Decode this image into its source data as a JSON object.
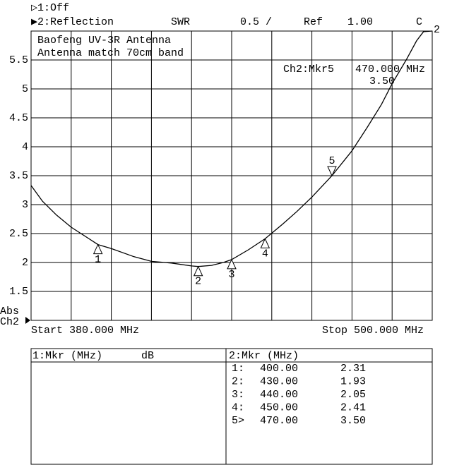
{
  "chart_data": {
    "type": "line",
    "channel1": "▷1:Off",
    "channel2": "▶2:Reflection",
    "format": "SWR",
    "scale": "0.5 /",
    "ref_label": "Ref",
    "ref_value": "1.00",
    "cal_flag": "C",
    "trace_end_label": "2",
    "annotations": [
      "Baofeng UV-3R Antenna",
      "Antenna match 70cm band"
    ],
    "active_marker": {
      "name": "Ch2:Mkr5",
      "freq": "470.000 MHz",
      "value": "3.50"
    },
    "axis_mode": "Abs",
    "axis_channel": "Ch2",
    "start_label": "Start 380.000 MHz",
    "stop_label": "Stop 500.000 MHz",
    "xlim": [
      380,
      500
    ],
    "xticks": [
      392,
      404,
      416,
      428,
      440,
      452,
      464,
      476,
      488
    ],
    "ylim": [
      1,
      6
    ],
    "yticks": [
      1.5,
      2,
      2.5,
      3,
      3.5,
      4,
      4.5,
      5,
      5.5
    ],
    "grid": true,
    "color": "#000000",
    "x": [
      380,
      383.4,
      387.6,
      392,
      400,
      404,
      410.8,
      416,
      422,
      428,
      430,
      434,
      437.5,
      440,
      445,
      450,
      455.2,
      459.5,
      464,
      470,
      476,
      480.6,
      484.8,
      488,
      492.2,
      495.3,
      497.4,
      500
    ],
    "values": [
      3.33,
      3.06,
      2.82,
      2.61,
      2.31,
      2.24,
      2.1,
      2.02,
      1.99,
      1.94,
      1.93,
      1.95,
      2.0,
      2.05,
      2.22,
      2.41,
      2.66,
      2.88,
      3.13,
      3.5,
      3.93,
      4.34,
      4.73,
      5.09,
      5.5,
      5.83,
      5.99,
      6.0
    ],
    "markers": [
      {
        "label": "1",
        "x": 400,
        "value": 2.31
      },
      {
        "label": "2",
        "x": 430,
        "value": 1.93
      },
      {
        "label": "3",
        "x": 440,
        "value": 2.05
      },
      {
        "label": "4",
        "x": 450,
        "value": 2.41
      },
      {
        "label": "5",
        "x": 470,
        "value": 3.5
      }
    ],
    "table": {
      "left_header": [
        "1:Mkr (MHz)",
        "dB"
      ],
      "right_header": "2:Mkr (MHz)",
      "rows": [
        [
          "1:",
          "400.00",
          "2.31"
        ],
        [
          "2:",
          "430.00",
          "1.93"
        ],
        [
          "3:",
          "440.00",
          "2.05"
        ],
        [
          "4:",
          "450.00",
          "2.41"
        ],
        [
          "5>",
          "470.00",
          "3.50"
        ]
      ]
    }
  }
}
